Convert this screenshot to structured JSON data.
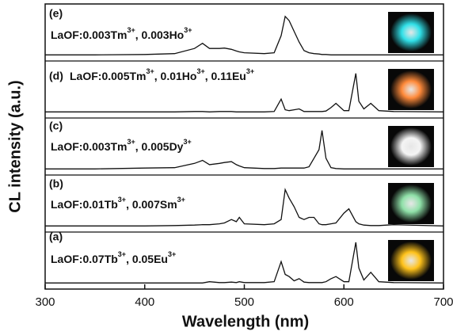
{
  "chart_data": {
    "type": "line",
    "x_label": "Wavelength (nm)",
    "y_label": "CL intensity (a.u.)",
    "xlim": [
      300,
      700
    ],
    "xticks": [
      300,
      400,
      500,
      600,
      700
    ],
    "ylim": [
      0,
      1
    ],
    "x": [
      300,
      350,
      400,
      430,
      450,
      458,
      465,
      475,
      480,
      487,
      492,
      495,
      500,
      520,
      530,
      537,
      541,
      545,
      550,
      555,
      560,
      565,
      570,
      575,
      578,
      582,
      587,
      592,
      600,
      605,
      612,
      615,
      620,
      627,
      635,
      650,
      700
    ],
    "series": [
      {
        "tag": "(a)",
        "label_parts": [
          "LaOF:0.07Tb",
          "3+",
          ", 0.05Eu",
          "3+"
        ],
        "color": "#111111",
        "glow": "#ffc21a",
        "values": [
          0.05,
          0.05,
          0.05,
          0.05,
          0.05,
          0.05,
          0.08,
          0.06,
          0.06,
          0.07,
          0.06,
          0.08,
          0.06,
          0.06,
          0.08,
          0.55,
          0.25,
          0.2,
          0.1,
          0.15,
          0.07,
          0.06,
          0.06,
          0.06,
          0.06,
          0.08,
          0.15,
          0.2,
          0.08,
          0.08,
          1.0,
          0.4,
          0.12,
          0.3,
          0.08,
          0.06,
          0.05
        ]
      },
      {
        "tag": "(b)",
        "label_parts": [
          "LaOF:0.01Tb",
          "3+",
          ", 0.007Sm",
          "3+"
        ],
        "color": "#111111",
        "glow": "#8fe0a8",
        "values": [
          0.05,
          0.05,
          0.05,
          0.06,
          0.07,
          0.08,
          0.08,
          0.1,
          0.12,
          0.2,
          0.15,
          0.25,
          0.1,
          0.08,
          0.1,
          0.2,
          0.9,
          0.7,
          0.5,
          0.25,
          0.2,
          0.25,
          0.25,
          0.1,
          0.08,
          0.08,
          0.1,
          0.12,
          0.35,
          0.45,
          0.15,
          0.1,
          0.07,
          0.06,
          0.06,
          0.08,
          0.05
        ]
      },
      {
        "tag": "(c)",
        "label_parts": [
          "LaOF:0.003Tm",
          "3+",
          ", 0.005Dy",
          "3+"
        ],
        "color": "#111111",
        "glow": "#f4f4f4",
        "values": [
          0.05,
          0.05,
          0.07,
          0.08,
          0.18,
          0.25,
          0.15,
          0.18,
          0.2,
          0.22,
          0.15,
          0.12,
          0.08,
          0.06,
          0.06,
          0.07,
          0.07,
          0.07,
          0.07,
          0.07,
          0.07,
          0.1,
          0.3,
          0.5,
          0.95,
          0.3,
          0.08,
          0.06,
          0.05,
          0.05,
          0.05,
          0.05,
          0.05,
          0.05,
          0.05,
          0.05,
          0.05
        ]
      },
      {
        "tag": "(d)",
        "label_parts": [
          "LaOF:0.005Tm",
          "3+",
          ", 0.01Ho",
          "3+",
          ", 0.11Eu",
          "3+"
        ],
        "color": "#111111",
        "glow": "#ff8a3a",
        "values": [
          0.05,
          0.05,
          0.05,
          0.05,
          0.06,
          0.06,
          0.05,
          0.06,
          0.06,
          0.06,
          0.05,
          0.05,
          0.05,
          0.05,
          0.06,
          0.35,
          0.1,
          0.08,
          0.1,
          0.12,
          0.06,
          0.06,
          0.06,
          0.06,
          0.06,
          0.07,
          0.15,
          0.25,
          0.08,
          0.08,
          0.95,
          0.3,
          0.12,
          0.25,
          0.08,
          0.06,
          0.05
        ]
      },
      {
        "tag": "(e)",
        "label_parts": [
          "LaOF:0.003Tm",
          "3+",
          ", 0.003Ho",
          "3+"
        ],
        "color": "#111111",
        "glow": "#30e0e8",
        "values": [
          0.05,
          0.05,
          0.06,
          0.08,
          0.2,
          0.32,
          0.2,
          0.2,
          0.21,
          0.18,
          0.14,
          0.12,
          0.1,
          0.08,
          0.1,
          0.5,
          0.95,
          0.85,
          0.6,
          0.35,
          0.15,
          0.1,
          0.08,
          0.07,
          0.06,
          0.06,
          0.05,
          0.05,
          0.05,
          0.05,
          0.05,
          0.05,
          0.05,
          0.05,
          0.05,
          0.05,
          0.05
        ]
      }
    ]
  }
}
